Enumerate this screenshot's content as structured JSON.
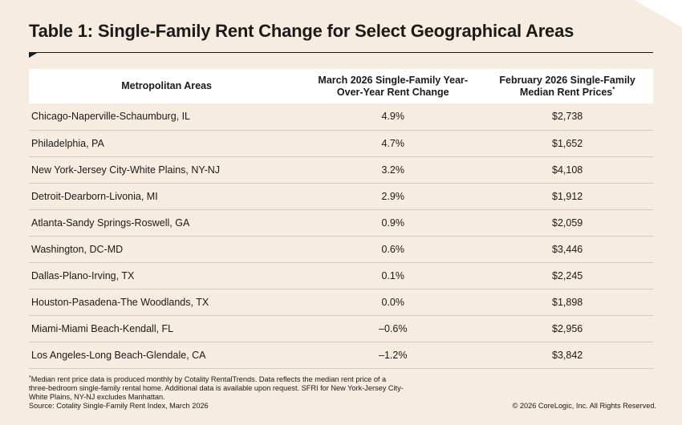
{
  "title": "Table 1: Single-Family Rent Change for Select Geographical Areas",
  "table": {
    "headers": [
      "Metropolitan Areas",
      "March 2026 Single-Family Year-Over-Year Rent Change",
      "February 2026 Single-Family Median Rent Prices"
    ],
    "header_footnote_mark": "*",
    "rows": [
      {
        "area": "Chicago-Naperville-Schaumburg, IL",
        "change": "4.9%",
        "price": "$2,738"
      },
      {
        "area": "Philadelphia, PA",
        "change": "4.7%",
        "price": "$1,652"
      },
      {
        "area": "New York-Jersey City-White Plains, NY-NJ",
        "change": "3.2%",
        "price": "$4,108"
      },
      {
        "area": "Detroit-Dearborn-Livonia, MI",
        "change": "2.9%",
        "price": "$1,912"
      },
      {
        "area": "Atlanta-Sandy Springs-Roswell, GA",
        "change": "0.9%",
        "price": "$2,059"
      },
      {
        "area": "Washington, DC-MD",
        "change": "0.6%",
        "price": "$3,446"
      },
      {
        "area": "Dallas-Plano-Irving, TX",
        "change": "0.1%",
        "price": "$2,245"
      },
      {
        "area": "Houston-Pasadena-The Woodlands, TX",
        "change": "0.0%",
        "price": "$1,898"
      },
      {
        "area": "Miami-Miami Beach-Kendall, FL",
        "change": "–0.6%",
        "price": "$2,956"
      },
      {
        "area": "Los Angeles-Long Beach-Glendale, CA",
        "change": "–1.2%",
        "price": "$3,842"
      }
    ]
  },
  "footnote": {
    "mark": "*",
    "text": "Median rent price data is produced monthly by Cotality RentalTrends. Data reflects the median rent price of a three-bedroom single-family rental home. Additional data is available upon request. SFRI for New York-Jersey City-White Plains, NY-NJ excludes Manhattan.",
    "source": "Source: Cotality Single-Family Rent Index, March 2026"
  },
  "copyright": "© 2026 CoreLogic, Inc. All Rights Reserved."
}
